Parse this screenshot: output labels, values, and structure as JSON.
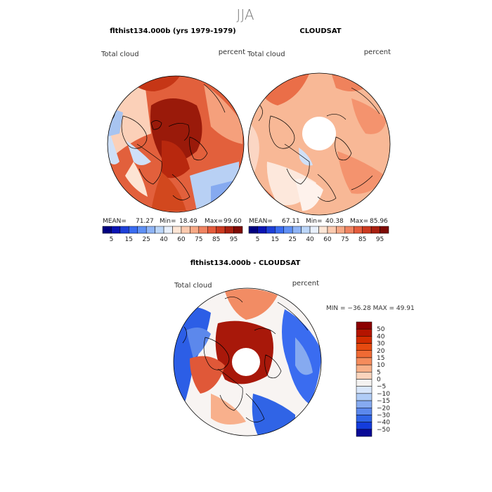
{
  "header": {
    "title": "JJA"
  },
  "panels": {
    "model": {
      "title": "flthist134.000b (yrs 1979-1979)",
      "variable": "Total cloud",
      "units": "percent",
      "stats": {
        "mean_label": "MEAN=",
        "mean": "71.27",
        "min_label": "Min=",
        "min": "18.49",
        "max_label": "Max=",
        "max": "99.60"
      }
    },
    "obs": {
      "title": "CLOUDSAT",
      "variable": "Total cloud",
      "units": "percent",
      "stats": {
        "mean_label": "MEAN=",
        "mean": "67.11",
        "min_label": "Min=",
        "min": "40.38",
        "max_label": "Max=",
        "max": "85.96"
      }
    },
    "diff": {
      "title": "flthist134.000b - CLOUDSAT",
      "variable": "Total cloud",
      "units": "percent",
      "stats_line": "MIN = −36.28 MAX =  49.91"
    }
  },
  "colorbar_top": {
    "labels": [
      "5",
      "15",
      "25",
      "40",
      "60",
      "75",
      "85",
      "95"
    ],
    "colors": [
      "#000080",
      "#0a14b4",
      "#1e40d8",
      "#3a6cf0",
      "#5f90f4",
      "#8fb4f6",
      "#bcd6f8",
      "#e8f0fc",
      "#fde6d6",
      "#fbcaaf",
      "#f7a986",
      "#f08461",
      "#e45c3c",
      "#cc3a20",
      "#a82010",
      "#7e0a04"
    ]
  },
  "colorbar_diff": {
    "labels": [
      "50",
      "40",
      "30",
      "20",
      "15",
      "10",
      "5",
      "0",
      "−5",
      "−10",
      "−15",
      "−20",
      "−30",
      "−40",
      "−50"
    ],
    "colors": [
      "#8c0000",
      "#b41400",
      "#d22c00",
      "#e64a10",
      "#f06a34",
      "#f58c5c",
      "#f8b088",
      "#fbd4bc",
      "#f4f2f0",
      "#d8e6fa",
      "#b0ccf6",
      "#86aaf0",
      "#5c88ec",
      "#3064e6",
      "#143cdc",
      "#0a0a96"
    ]
  }
}
